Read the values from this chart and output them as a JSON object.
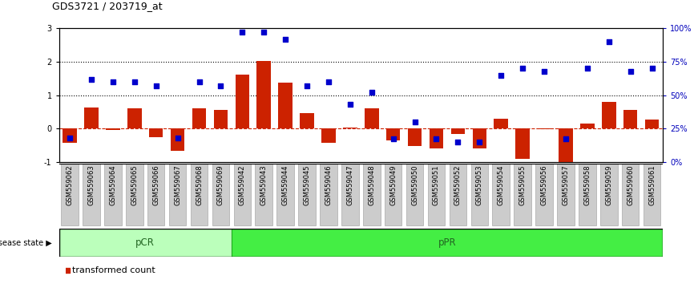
{
  "title": "GDS3721 / 203719_at",
  "samples": [
    "GSM559062",
    "GSM559063",
    "GSM559064",
    "GSM559065",
    "GSM559066",
    "GSM559067",
    "GSM559068",
    "GSM559069",
    "GSM559042",
    "GSM559043",
    "GSM559044",
    "GSM559045",
    "GSM559046",
    "GSM559047",
    "GSM559048",
    "GSM559049",
    "GSM559050",
    "GSM559051",
    "GSM559052",
    "GSM559053",
    "GSM559054",
    "GSM559055",
    "GSM559056",
    "GSM559057",
    "GSM559058",
    "GSM559059",
    "GSM559060",
    "GSM559061"
  ],
  "transformed_count": [
    -0.42,
    0.62,
    -0.04,
    0.6,
    -0.25,
    -0.68,
    0.6,
    0.55,
    1.62,
    2.02,
    1.38,
    0.46,
    -0.42,
    0.04,
    0.6,
    -0.35,
    -0.52,
    -0.6,
    -0.16,
    -0.6,
    0.3,
    -0.9,
    -0.02,
    -1.05,
    0.14,
    0.8,
    0.55,
    0.26
  ],
  "percentile_rank": [
    18,
    62,
    60,
    60,
    57,
    18,
    60,
    57,
    97,
    97,
    92,
    57,
    60,
    43,
    52,
    17,
    30,
    17,
    15,
    15,
    65,
    70,
    68,
    17,
    70,
    90,
    68,
    70
  ],
  "pCR_count": 8,
  "pPR_count": 20,
  "bar_color": "#cc2200",
  "dot_color": "#0000cc",
  "background_color": "#ffffff",
  "tick_bg_color": "#cccccc",
  "tick_edge_color": "#aaaaaa",
  "pCR_color": "#bbffbb",
  "pPR_color": "#44ee44",
  "pCR_edge_color": "#33aa33",
  "pPR_edge_color": "#22aa22",
  "ylim": [
    -1,
    3
  ],
  "y2lim": [
    0,
    100
  ],
  "hline_0_style": "--",
  "hline_0_color": "#cc2200",
  "hline_1_color": "#000000",
  "hline_2_color": "#000000",
  "right_axis_color": "#0000bb",
  "title_fontsize": 9,
  "bar_fontsize": 6.5,
  "legend_fontsize": 8
}
